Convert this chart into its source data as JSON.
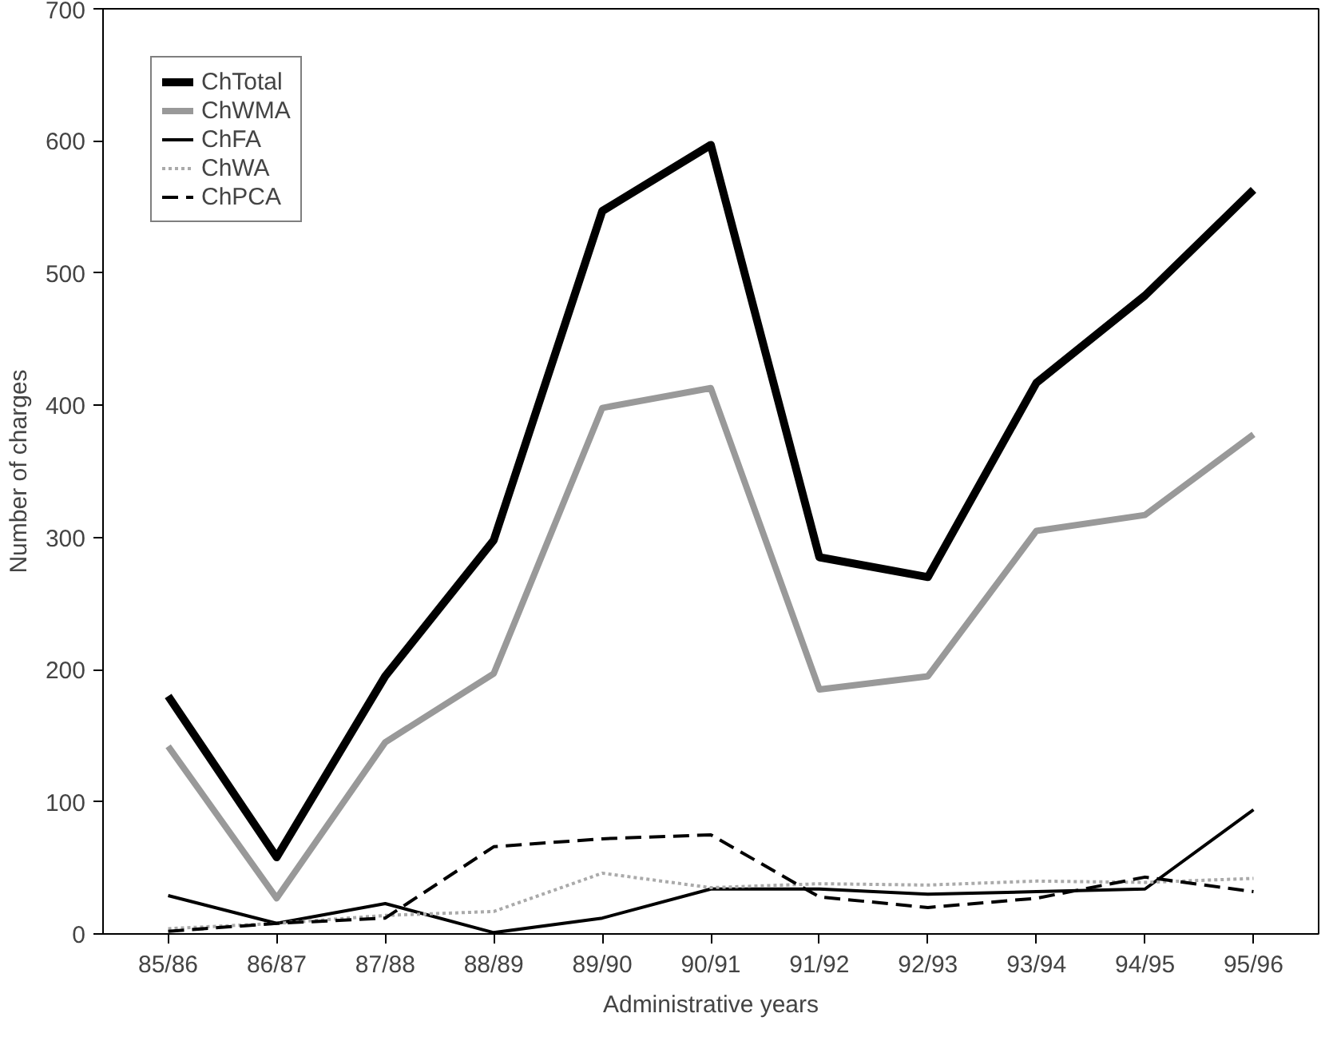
{
  "chart_data": {
    "type": "line",
    "xlabel": "Administrative years",
    "ylabel": "Number of charges",
    "categories": [
      "85/86",
      "86/87",
      "87/88",
      "88/89",
      "89/90",
      "90/91",
      "91/92",
      "92/93",
      "93/94",
      "94/95",
      "95/96"
    ],
    "ylim": [
      0,
      700
    ],
    "yticks": [
      0,
      100,
      200,
      300,
      400,
      500,
      600,
      700
    ],
    "legend": "top left",
    "grid": false,
    "series": [
      {
        "name": "ChTotal",
        "color": "#000000",
        "line_style": "solid",
        "values": [
          180,
          58,
          195,
          298,
          547,
          597,
          285,
          270,
          417,
          483,
          563
        ]
      },
      {
        "name": "ChWMA",
        "color": "#999999",
        "line_style": "solid",
        "values": [
          142,
          27,
          145,
          197,
          398,
          413,
          185,
          195,
          305,
          317,
          378
        ]
      },
      {
        "name": "ChFA",
        "color": "#000000",
        "line_style": "solid",
        "values": [
          29,
          8,
          23,
          1,
          12,
          34,
          34,
          30,
          32,
          34,
          94
        ]
      },
      {
        "name": "ChWA",
        "color": "#aaaaaa",
        "line_style": "dotted",
        "values": [
          4,
          8,
          14,
          17,
          46,
          35,
          38,
          37,
          40,
          39,
          42
        ]
      },
      {
        "name": "ChPCA",
        "color": "#000000",
        "line_style": "dashed",
        "values": [
          2,
          8,
          12,
          66,
          72,
          75,
          28,
          20,
          27,
          43,
          32
        ]
      }
    ]
  }
}
